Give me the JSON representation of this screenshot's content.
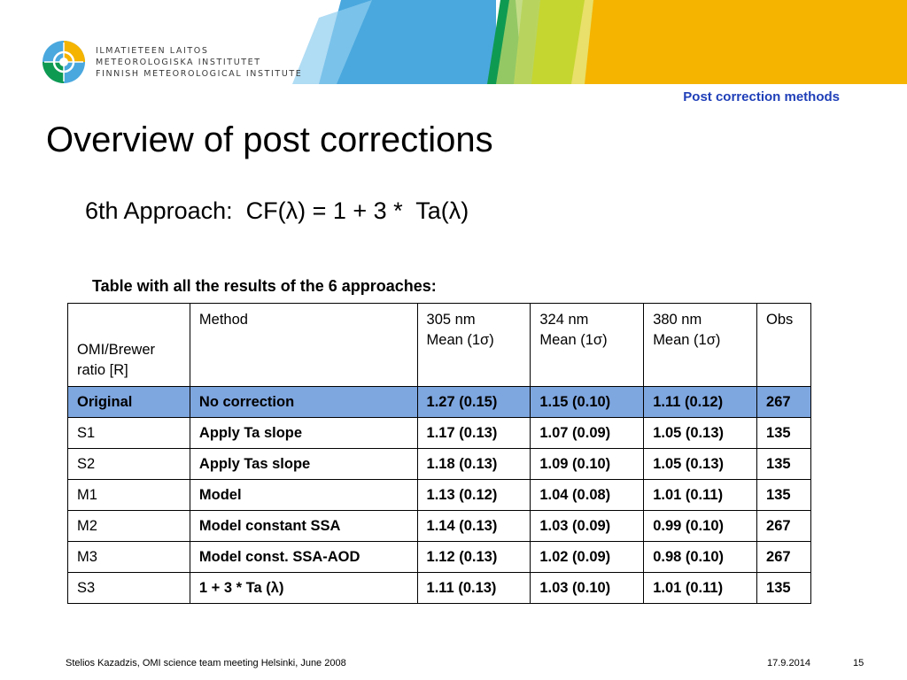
{
  "header": {
    "org_lines": [
      "ILMATIETEEN LAITOS",
      "METEOROLOGISKA INSTITUTET",
      "FINNISH METEOROLOGICAL INSTITUTE"
    ],
    "section_label": "Post correction methods",
    "colors": {
      "band_blue": "#4aa8de",
      "band_green": "#0f9a52",
      "band_lime": "#c6d630",
      "band_yellow": "#f5b400",
      "section_label": "#1f3fb8",
      "highlight_row": "#7ea6df"
    }
  },
  "slide": {
    "title": "Overview of post corrections",
    "formula": "6th Approach:  CF(λ) = 1 + 3 *  Ta(λ)",
    "table_caption": "Table with all the results of the 6 approaches:"
  },
  "table": {
    "headers": [
      "OMI/Brewer ratio [R]",
      "Method",
      "305 nm Mean (1σ)",
      "324 nm Mean (1σ)",
      "380 nm Mean (1σ)",
      "Obs"
    ],
    "header_lines": [
      [
        "OMI/Brewer",
        "ratio [R]"
      ],
      [
        "Method"
      ],
      [
        "305 nm",
        "Mean (1σ)"
      ],
      [
        "324 nm",
        "Mean (1σ)"
      ],
      [
        "380 nm",
        "Mean (1σ)"
      ],
      [
        "Obs"
      ]
    ],
    "rows": [
      {
        "cells": [
          "Original",
          "No correction",
          "1.27 (0.15)",
          "1.15 (0.10)",
          "1.11 (0.12)",
          "267"
        ],
        "highlighted": true
      },
      {
        "cells": [
          "S1",
          "Apply Ta slope",
          "1.17 (0.13)",
          "1.07 (0.09)",
          "1.05 (0.13)",
          "135"
        ],
        "highlighted": false
      },
      {
        "cells": [
          "S2",
          "Apply Tas slope",
          "1.18 (0.13)",
          "1.09 (0.10)",
          "1.05 (0.13)",
          "135"
        ],
        "highlighted": false
      },
      {
        "cells": [
          "M1",
          "Model",
          "1.13 (0.12)",
          "1.04 (0.08)",
          "1.01 (0.11)",
          "135"
        ],
        "highlighted": false
      },
      {
        "cells": [
          "M2",
          "Model constant SSA",
          "1.14 (0.13)",
          "1.03 (0.09)",
          "0.99 (0.10)",
          "267"
        ],
        "highlighted": false
      },
      {
        "cells": [
          "M3",
          "Model const. SSA-AOD",
          "1.12 (0.13)",
          "1.02 (0.09)",
          "0.98 (0.10)",
          "267"
        ],
        "highlighted": false
      },
      {
        "cells": [
          "S3",
          "1 + 3 * Ta (λ)",
          "1.11 (0.13)",
          "1.03 (0.10)",
          "1.01 (0.11)",
          "135"
        ],
        "highlighted": false
      }
    ]
  },
  "footer": {
    "author": "Stelios Kazadzis, OMI science team meeting Helsinki, June 2008",
    "date": "17.9.2014",
    "page_number": "15"
  }
}
